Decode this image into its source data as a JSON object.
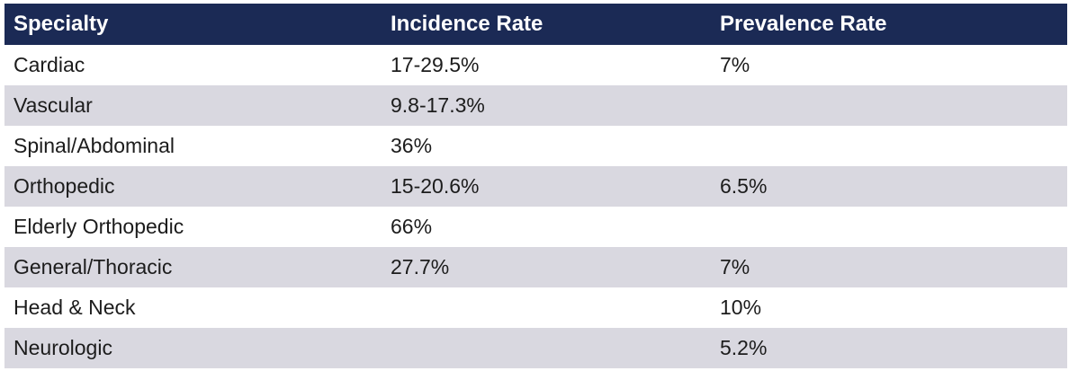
{
  "table": {
    "headers": [
      "Specialty",
      "Incidence Rate",
      "Prevalence Rate"
    ],
    "rows": [
      {
        "specialty": "Cardiac",
        "incidence": "17-29.5%",
        "prevalence": "7%"
      },
      {
        "specialty": "Vascular",
        "incidence": "9.8-17.3%",
        "prevalence": ""
      },
      {
        "specialty": "Spinal/Abdominal",
        "incidence": "36%",
        "prevalence": ""
      },
      {
        "specialty": "Orthopedic",
        "incidence": "15-20.6%",
        "prevalence": "6.5%"
      },
      {
        "specialty": "Elderly Orthopedic",
        "incidence": "66%",
        "prevalence": ""
      },
      {
        "specialty": "General/Thoracic",
        "incidence": "27.7%",
        "prevalence": "7%"
      },
      {
        "specialty": "Head & Neck",
        "incidence": "",
        "prevalence": "10%"
      },
      {
        "specialty": "Neurologic",
        "incidence": "",
        "prevalence": "5.2%"
      }
    ]
  },
  "colors": {
    "header_bg": "#1b2a55",
    "header_text": "#ffffff",
    "alt_row_bg": "#d9d8e0",
    "row_bg": "#ffffff",
    "body_text": "#1c1c1c"
  }
}
